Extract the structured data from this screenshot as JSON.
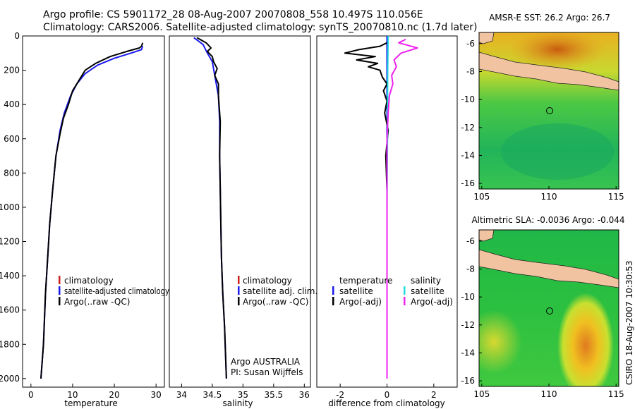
{
  "title_line1": "Argo profile: CS 5901172_28 08-Aug-2007 20070808_558 10.497S 110.056E",
  "title_line2": "Climatology: CARS2006. Satellite-adjusted climatology: synTS_20070810.nc (1.7d later)",
  "side_label": "CSIRO 18-Aug-2007 10:30:53",
  "colors": {
    "clim": "#cc2222",
    "sat": "#1a1aee",
    "argo": "#000000",
    "sat_sal": "#22dddd",
    "argo_sal": "#ee22ee"
  },
  "chart_data": [
    {
      "type": "line",
      "name": "temperature",
      "xlabel": "temperature",
      "xlim": [
        -2,
        32
      ],
      "ylim": [
        0,
        2050
      ],
      "y_reversed": true,
      "xticks": [
        "0",
        "10",
        "20",
        "30"
      ],
      "yticks": [
        "0",
        "200",
        "400",
        "600",
        "800",
        "1000",
        "1200",
        "1400",
        "1600",
        "1800",
        "2000"
      ],
      "series": [
        {
          "name": "satellite-adjusted climatology",
          "color": "#1a1aee",
          "points": [
            [
              26.8,
              60
            ],
            [
              26.5,
              80
            ],
            [
              24,
              100
            ],
            [
              20,
              130
            ],
            [
              16,
              170
            ],
            [
              13,
              220
            ],
            [
              11,
              280
            ],
            [
              9.5,
              350
            ],
            [
              8,
              450
            ],
            [
              7,
              550
            ],
            [
              6,
              700
            ],
            [
              5.2,
              900
            ],
            [
              4.5,
              1100
            ],
            [
              4,
              1300
            ],
            [
              3.5,
              1500
            ],
            [
              3,
              1800
            ],
            [
              2.4,
              2000
            ]
          ]
        },
        {
          "name": "Argo(..raw -QC)",
          "color": "#000000",
          "points": [
            [
              26.8,
              40
            ],
            [
              26.5,
              60
            ],
            [
              26,
              70
            ],
            [
              23,
              90
            ],
            [
              19,
              120
            ],
            [
              15.5,
              160
            ],
            [
              13,
              200
            ],
            [
              11.5,
              260
            ],
            [
              10,
              320
            ],
            [
              9,
              400
            ],
            [
              7.8,
              480
            ],
            [
              7,
              570
            ],
            [
              6,
              700
            ],
            [
              5.2,
              900
            ],
            [
              4.5,
              1100
            ],
            [
              4,
              1300
            ],
            [
              3.5,
              1500
            ],
            [
              3,
              1800
            ],
            [
              2.4,
              2000
            ]
          ]
        }
      ],
      "legend": [
        {
          "label": "climatology",
          "color": "#cc2222"
        },
        {
          "label": "satellite-adjusted climatology",
          "color": "#1a1aee"
        },
        {
          "label": "Argo(..raw -QC)",
          "color": "#000000"
        }
      ]
    },
    {
      "type": "line",
      "name": "salinity",
      "xlabel": "salinity",
      "xlim": [
        33.8,
        36.1
      ],
      "ylim": [
        0,
        2050
      ],
      "y_reversed": true,
      "xticks": [
        "34",
        "34.5",
        "35",
        "35.5",
        "36"
      ],
      "series": [
        {
          "name": "satellite adj. clim.",
          "color": "#1a1aee",
          "points": [
            [
              34.2,
              10
            ],
            [
              34.35,
              50
            ],
            [
              34.42,
              100
            ],
            [
              34.5,
              150
            ],
            [
              34.55,
              250
            ],
            [
              34.6,
              350
            ],
            [
              34.62,
              500
            ],
            [
              34.62,
              700
            ],
            [
              34.63,
              900
            ],
            [
              34.64,
              1100
            ],
            [
              34.65,
              1300
            ],
            [
              34.67,
              1500
            ],
            [
              34.7,
              1700
            ],
            [
              34.72,
              1900
            ],
            [
              34.73,
              2000
            ]
          ]
        },
        {
          "name": "Argo(..raw -QC)",
          "color": "#000000",
          "points": [
            [
              34.25,
              10
            ],
            [
              34.4,
              40
            ],
            [
              34.48,
              70
            ],
            [
              34.42,
              90
            ],
            [
              34.5,
              120
            ],
            [
              34.52,
              150
            ],
            [
              34.58,
              190
            ],
            [
              34.54,
              230
            ],
            [
              34.6,
              280
            ],
            [
              34.6,
              350
            ],
            [
              34.63,
              500
            ],
            [
              34.62,
              700
            ],
            [
              34.63,
              900
            ],
            [
              34.64,
              1100
            ],
            [
              34.65,
              1300
            ],
            [
              34.67,
              1500
            ],
            [
              34.7,
              1700
            ],
            [
              34.72,
              1900
            ],
            [
              34.73,
              2000
            ]
          ]
        }
      ],
      "legend": [
        {
          "label": "climatology",
          "color": "#cc2222"
        },
        {
          "label": "satellite adj. clim.",
          "color": "#1a1aee"
        },
        {
          "label": "Argo(..raw -QC)",
          "color": "#000000"
        }
      ],
      "annotation": [
        "Argo AUSTRALIA",
        "PI: Susan Wijffels"
      ]
    },
    {
      "type": "line",
      "name": "difference",
      "xlabel": "difference from climatology",
      "xlim": [
        -3,
        3
      ],
      "ylim": [
        0,
        2050
      ],
      "y_reversed": true,
      "xticks": [
        "-2",
        "0",
        "2"
      ],
      "series": [
        {
          "name": "temperature satellite",
          "color": "#1a1aee",
          "points": [
            [
              0,
              0
            ],
            [
              0,
              2000
            ]
          ]
        },
        {
          "name": "temperature Argo(-adj)",
          "color": "#000000",
          "points": [
            [
              0,
              40
            ],
            [
              -0.3,
              60
            ],
            [
              -1.2,
              80
            ],
            [
              -1.8,
              100
            ],
            [
              -0.5,
              120
            ],
            [
              -1.3,
              140
            ],
            [
              -0.4,
              160
            ],
            [
              -0.8,
              180
            ],
            [
              -0.3,
              200
            ],
            [
              -0.2,
              240
            ],
            [
              0,
              280
            ],
            [
              -0.15,
              320
            ],
            [
              0,
              380
            ],
            [
              -0.1,
              450
            ],
            [
              0.05,
              550
            ],
            [
              -0.05,
              700
            ],
            [
              0,
              900
            ],
            [
              0,
              1100
            ],
            [
              0,
              1300
            ],
            [
              0,
              1500
            ],
            [
              0,
              2000
            ]
          ]
        },
        {
          "name": "salinity satellite",
          "color": "#22dddd",
          "points": [
            [
              0.05,
              0
            ],
            [
              0.03,
              200
            ],
            [
              0.02,
              600
            ],
            [
              0,
              1000
            ],
            [
              0,
              2000
            ]
          ]
        },
        {
          "name": "salinity Argo(-adj)",
          "color": "#ee22ee",
          "points": [
            [
              0.8,
              20
            ],
            [
              0.5,
              40
            ],
            [
              1.3,
              70
            ],
            [
              0.6,
              100
            ],
            [
              0.3,
              140
            ],
            [
              0.4,
              180
            ],
            [
              0.2,
              230
            ],
            [
              0.25,
              280
            ],
            [
              0.1,
              350
            ],
            [
              0.05,
              450
            ],
            [
              0,
              600
            ],
            [
              0,
              800
            ],
            [
              0,
              1000
            ],
            [
              0,
              1500
            ],
            [
              0,
              2000
            ]
          ]
        }
      ],
      "legend_left_title": "temperature",
      "legend_right_title": "salinity",
      "legend_left": [
        {
          "label": "satellite",
          "color": "#1a1aee"
        },
        {
          "label": "Argo(-adj)",
          "color": "#000000"
        }
      ],
      "legend_right": [
        {
          "label": "satellite",
          "color": "#22dddd"
        },
        {
          "label": "Argo(-adj)",
          "color": "#ee22ee"
        }
      ]
    },
    {
      "type": "heatmap",
      "name": "sst-map",
      "title": "AMSR-E SST: 26.2 Argo: 26.7",
      "xlim": [
        104.8,
        115.2
      ],
      "ylim": [
        -16.4,
        -5.2
      ],
      "xticks": [
        "105",
        "110",
        "115"
      ],
      "yticks": [
        "-6",
        "-8",
        "-10",
        "-12",
        "-14",
        "-16"
      ],
      "marker": {
        "lon": 110.056,
        "lat": -10.497
      }
    },
    {
      "type": "heatmap",
      "name": "sla-map",
      "title": "Altimetric SLA: -0.0036 Argo: -0.044",
      "xlim": [
        104.8,
        115.2
      ],
      "ylim": [
        -16.4,
        -5.2
      ],
      "xticks": [
        "105",
        "110",
        "115"
      ],
      "yticks": [
        "-6",
        "-8",
        "-10",
        "-12",
        "-14",
        "-16"
      ],
      "marker": {
        "lon": 110.056,
        "lat": -10.497
      }
    }
  ]
}
